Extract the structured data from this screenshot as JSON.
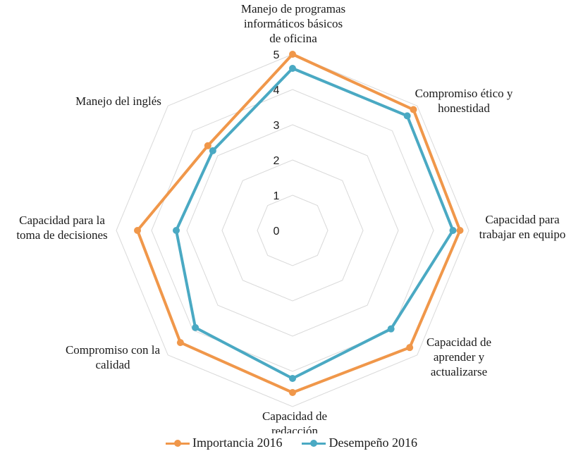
{
  "chart_data": {
    "type": "radar",
    "categories": [
      "Manejo de programas informáticos básicos de oficina",
      "Compromiso ético y honestidad",
      "Capacidad para trabajar en equipo",
      "Capacidad de aprender y actualizarse",
      "Capacidad de redacción",
      "Compromiso con la calidad",
      "Capacidad para la toma de decisiones",
      "Manejo del inglés"
    ],
    "category_lines": [
      [
        "Manejo de programas",
        "informáticos básicos",
        "de oficina"
      ],
      [
        "Compromiso ético y",
        "honestidad"
      ],
      [
        "Capacidad para",
        "trabajar en equipo"
      ],
      [
        "Capacidad de",
        "aprender y",
        "actualizarse"
      ],
      [
        "Capacidad de",
        "redacción"
      ],
      [
        "Compromiso con la",
        "calidad"
      ],
      [
        "Capacidad para la",
        "toma de decisiones"
      ],
      [
        "Manejo del inglés"
      ]
    ],
    "ticks": [
      "0",
      "1",
      "2",
      "3",
      "4",
      "5"
    ],
    "rlim": [
      0,
      5
    ],
    "grid": true,
    "legend_position": "bottom",
    "series": [
      {
        "name": "Importancia 2016",
        "color": "#F0974A",
        "values": [
          5.0,
          4.85,
          4.75,
          4.7,
          4.6,
          4.5,
          4.4,
          3.4
        ]
      },
      {
        "name": "Desempeño 2016",
        "color": "#4AA9C3",
        "values": [
          4.6,
          4.6,
          4.55,
          3.95,
          4.2,
          3.9,
          3.3,
          3.2
        ]
      }
    ]
  }
}
